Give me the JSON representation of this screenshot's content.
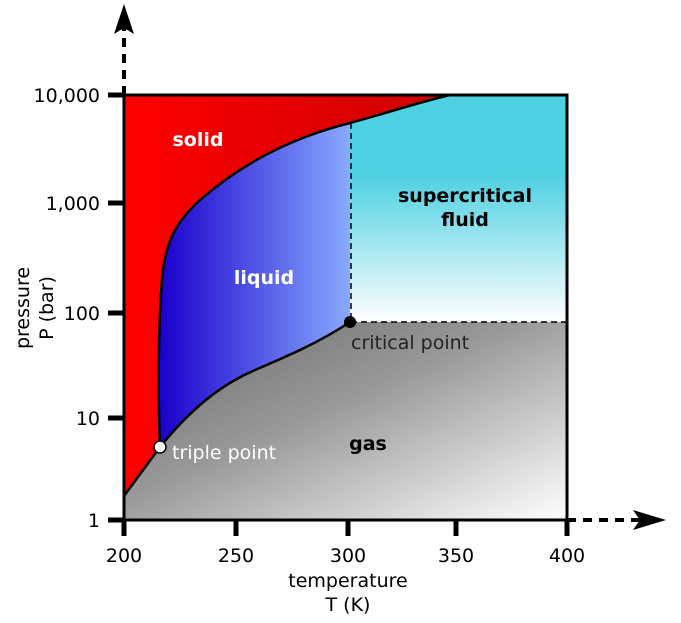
{
  "chart_data": {
    "type": "diagram",
    "x_axis": {
      "ticks": [
        "200",
        "250",
        "300",
        "350",
        "400"
      ],
      "title_line1": "temperature",
      "title_line2": "T (K)",
      "range": [
        200,
        400
      ]
    },
    "y_axis": {
      "ticks": [
        "1",
        "10",
        "100",
        "1,000",
        "10,000"
      ],
      "title_line1": "pressure",
      "title_line2": "P (bar)",
      "scale": "log",
      "range": [
        1,
        10000
      ]
    },
    "regions": {
      "solid": "solid",
      "liquid": "liquid",
      "supercritical_line1": "supercritical",
      "supercritical_line2": "fluid",
      "gas": "gas"
    },
    "points": {
      "triple_label": "triple point",
      "triple_T": 216,
      "triple_P": 5.1,
      "critical_label": "critical point",
      "critical_T": 301,
      "critical_P": 80
    },
    "colors": {
      "solid": "#ff0000",
      "liquid_dark": "#1a00cc",
      "liquid_light": "#88aaff",
      "supercritical": "#4dd0e1",
      "gas": "#888888"
    }
  }
}
